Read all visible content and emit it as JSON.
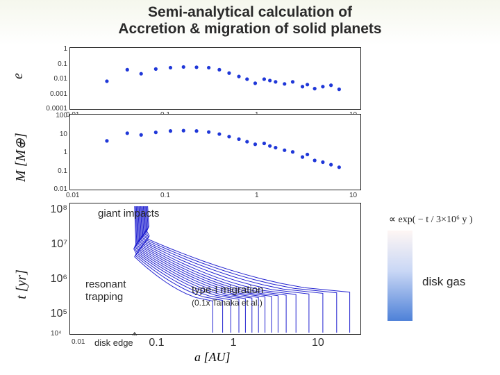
{
  "title_line1": "Semi-analytical calculation of",
  "title_line2": "Accretion & migration of solid planets",
  "panel_e": {
    "ylabel": "e",
    "yticks": [
      "1",
      "0.1",
      "0.01",
      "0.001",
      "0.0001"
    ],
    "xticks": [
      "0.01",
      "0.1",
      "1",
      "10"
    ],
    "xlim_log": [
      -2,
      1.477
    ],
    "ylim_log": [
      -4,
      0
    ],
    "points": [
      [
        -1.6,
        -2.15
      ],
      [
        -1.35,
        -1.3
      ],
      [
        -1.18,
        -1.6
      ],
      [
        -1.0,
        -1.25
      ],
      [
        -0.82,
        -1.15
      ],
      [
        -0.66,
        -1.1
      ],
      [
        -0.5,
        -1.12
      ],
      [
        -0.35,
        -1.15
      ],
      [
        -0.22,
        -1.3
      ],
      [
        -0.1,
        -1.55
      ],
      [
        0.02,
        -1.8
      ],
      [
        0.12,
        -2.0
      ],
      [
        0.22,
        -2.3
      ],
      [
        0.33,
        -2.0
      ],
      [
        0.4,
        -2.1
      ],
      [
        0.47,
        -2.2
      ],
      [
        0.58,
        -2.35
      ],
      [
        0.68,
        -2.2
      ],
      [
        0.8,
        -2.55
      ],
      [
        0.86,
        -2.4
      ],
      [
        0.95,
        -2.7
      ],
      [
        1.05,
        -2.55
      ],
      [
        1.15,
        -2.45
      ],
      [
        1.25,
        -2.75
      ]
    ],
    "point_color": "#1f37d8"
  },
  "panel_m": {
    "ylabel": "M [M⊕]",
    "yticks": [
      "100",
      "10",
      "1",
      "0.1",
      "0.01"
    ],
    "xticks": [
      "0.01",
      "0.1",
      "1",
      "10"
    ],
    "xlim_log": [
      -2,
      1.477
    ],
    "ylim_log": [
      -2,
      2
    ],
    "points": [
      [
        -1.6,
        0.7
      ],
      [
        -1.35,
        1.15
      ],
      [
        -1.18,
        1.05
      ],
      [
        -1.0,
        1.2
      ],
      [
        -0.82,
        1.28
      ],
      [
        -0.66,
        1.3
      ],
      [
        -0.5,
        1.28
      ],
      [
        -0.35,
        1.22
      ],
      [
        -0.22,
        1.1
      ],
      [
        -0.1,
        0.95
      ],
      [
        0.02,
        0.8
      ],
      [
        0.12,
        0.65
      ],
      [
        0.22,
        0.5
      ],
      [
        0.33,
        0.55
      ],
      [
        0.4,
        0.4
      ],
      [
        0.47,
        0.3
      ],
      [
        0.58,
        0.15
      ],
      [
        0.68,
        0.05
      ],
      [
        0.8,
        -0.25
      ],
      [
        0.86,
        -0.1
      ],
      [
        0.95,
        -0.45
      ],
      [
        1.05,
        -0.55
      ],
      [
        1.15,
        -0.7
      ],
      [
        1.25,
        -0.85
      ]
    ],
    "point_color": "#1f37d8"
  },
  "panel_t": {
    "ylabel": "t [yr]",
    "xlabel": "a [AU]",
    "yticks_major": [
      "10⁸",
      "10⁷",
      "10⁶",
      "10⁵"
    ],
    "yticks_fontsize": 16,
    "xticks_major": [
      "0.1",
      "1",
      "10"
    ],
    "xticks_fontsize": 16,
    "bottom_tick_small": "10⁴",
    "left_tick_small": "0.01",
    "xlim_log": [
      -2,
      1.477
    ],
    "ylim_log": [
      4,
      8
    ],
    "line_color": "#2020c8",
    "annotations": {
      "giant_impacts": "giant impacts",
      "resonant_trapping_l1": "resonant",
      "resonant_trapping_l2": "trapping",
      "type_i_migration": "type-I migration",
      "type_i_sub": "(0.1x Tanaka et al.)",
      "disk_edge": "disk edge"
    },
    "tracks_start_log_a": [
      -0.3,
      -0.18,
      -0.08,
      0.02,
      0.1,
      0.18,
      0.26,
      0.34,
      0.42,
      0.5,
      0.6,
      0.72,
      0.88,
      1.05,
      1.22,
      1.38
    ],
    "disk_edge_log_a": -1.26,
    "tracks_end_spread": 0.16
  },
  "disk_gas": {
    "label": "disk gas",
    "gradient_top": "#fef6f4",
    "gradient_mid": "#c9d7f5",
    "gradient_bot": "#4e81d8",
    "formula": "∝ exp( − t / 3×10⁶ y )"
  },
  "colors": {
    "panel_border": "#222222",
    "background": "#ffffff",
    "text": "#2a2a2a"
  }
}
